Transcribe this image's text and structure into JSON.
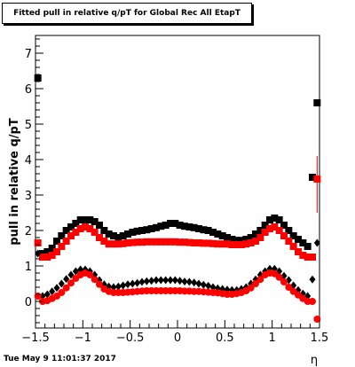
{
  "title": "Fitted pull in relative q/pT for Global Rec All EtapT",
  "timestamp": "Tue May  9 11:01:37 2017",
  "chart_data": {
    "type": "scatter",
    "xlabel": "η",
    "ylabel": "pull in relative q/pT",
    "xlim": [
      -1.5,
      1.5
    ],
    "ylim": [
      -0.75,
      7.5
    ],
    "x_ticks": [
      "−1.5",
      "−1",
      "−0.5",
      "0",
      "0.5",
      "1",
      "1.5"
    ],
    "y_ticks": [
      "0",
      "1",
      "2",
      "3",
      "4",
      "5",
      "6",
      "7"
    ],
    "grid": false,
    "series": [
      {
        "name": "",
        "marker": "square",
        "color": "#000000",
        "x": [
          -1.475,
          -1.425,
          -1.375,
          -1.325,
          -1.275,
          -1.225,
          -1.175,
          -1.125,
          -1.075,
          -1.025,
          -0.975,
          -0.925,
          -0.875,
          -0.825,
          -0.775,
          -0.725,
          -0.675,
          -0.625,
          -0.575,
          -0.525,
          -0.475,
          -0.425,
          -0.375,
          -0.325,
          -0.275,
          -0.225,
          -0.175,
          -0.125,
          -0.075,
          -0.025,
          0.025,
          0.075,
          0.125,
          0.175,
          0.225,
          0.275,
          0.325,
          0.375,
          0.425,
          0.475,
          0.525,
          0.575,
          0.625,
          0.675,
          0.725,
          0.775,
          0.825,
          0.875,
          0.925,
          0.975,
          1.025,
          1.075,
          1.125,
          1.175,
          1.225,
          1.275,
          1.325,
          1.375,
          1.425,
          1.475
        ],
        "y": [
          6.3,
          1.35,
          1.4,
          1.5,
          1.7,
          1.85,
          2.0,
          2.1,
          2.2,
          2.3,
          2.3,
          2.3,
          2.25,
          2.15,
          2.0,
          1.9,
          1.85,
          1.8,
          1.85,
          1.9,
          1.95,
          1.98,
          2.0,
          2.02,
          2.05,
          2.08,
          2.12,
          2.15,
          2.2,
          2.2,
          2.15,
          2.12,
          2.1,
          2.08,
          2.05,
          2.02,
          2.0,
          1.95,
          1.9,
          1.85,
          1.8,
          1.75,
          1.72,
          1.72,
          1.75,
          1.8,
          1.9,
          2.0,
          2.15,
          2.3,
          2.35,
          2.3,
          2.15,
          2.0,
          1.85,
          1.75,
          1.65,
          1.55,
          3.5,
          5.6
        ]
      },
      {
        "name": "",
        "marker": "square",
        "color": "#ff0000",
        "x": [
          -1.475,
          -1.425,
          -1.375,
          -1.325,
          -1.275,
          -1.225,
          -1.175,
          -1.125,
          -1.075,
          -1.025,
          -0.975,
          -0.925,
          -0.875,
          -0.825,
          -0.775,
          -0.725,
          -0.675,
          -0.625,
          -0.575,
          -0.525,
          -0.475,
          -0.425,
          -0.375,
          -0.325,
          -0.275,
          -0.225,
          -0.175,
          -0.125,
          -0.075,
          -0.025,
          0.025,
          0.075,
          0.125,
          0.175,
          0.225,
          0.275,
          0.325,
          0.375,
          0.425,
          0.475,
          0.525,
          0.575,
          0.625,
          0.675,
          0.725,
          0.775,
          0.825,
          0.875,
          0.925,
          0.975,
          1.025,
          1.075,
          1.125,
          1.175,
          1.225,
          1.275,
          1.325,
          1.375,
          1.425,
          1.475
        ],
        "y": [
          1.65,
          1.25,
          1.25,
          1.3,
          1.4,
          1.55,
          1.7,
          1.85,
          1.95,
          2.05,
          2.1,
          2.05,
          1.95,
          1.8,
          1.7,
          1.62,
          1.62,
          1.62,
          1.63,
          1.65,
          1.66,
          1.67,
          1.67,
          1.68,
          1.68,
          1.68,
          1.68,
          1.68,
          1.68,
          1.68,
          1.67,
          1.67,
          1.66,
          1.65,
          1.65,
          1.64,
          1.64,
          1.63,
          1.62,
          1.62,
          1.62,
          1.6,
          1.6,
          1.6,
          1.62,
          1.65,
          1.7,
          1.8,
          1.95,
          2.05,
          2.1,
          2.0,
          1.85,
          1.7,
          1.55,
          1.4,
          1.3,
          1.25,
          1.25,
          3.45
        ]
      },
      {
        "name": "",
        "marker": "diamond",
        "color": "#000000",
        "x": [
          -1.475,
          -1.425,
          -1.375,
          -1.325,
          -1.275,
          -1.225,
          -1.175,
          -1.125,
          -1.075,
          -1.025,
          -0.975,
          -0.925,
          -0.875,
          -0.825,
          -0.775,
          -0.725,
          -0.675,
          -0.625,
          -0.575,
          -0.525,
          -0.475,
          -0.425,
          -0.375,
          -0.325,
          -0.275,
          -0.225,
          -0.175,
          -0.125,
          -0.075,
          -0.025,
          0.025,
          0.075,
          0.125,
          0.175,
          0.225,
          0.275,
          0.325,
          0.375,
          0.425,
          0.475,
          0.525,
          0.575,
          0.625,
          0.675,
          0.725,
          0.775,
          0.825,
          0.875,
          0.925,
          0.975,
          1.025,
          1.075,
          1.125,
          1.175,
          1.225,
          1.275,
          1.325,
          1.375,
          1.425,
          1.475
        ],
        "y": [
          1.35,
          0.15,
          0.2,
          0.28,
          0.38,
          0.5,
          0.63,
          0.75,
          0.85,
          0.9,
          0.9,
          0.85,
          0.75,
          0.6,
          0.48,
          0.42,
          0.4,
          0.42,
          0.45,
          0.48,
          0.5,
          0.52,
          0.55,
          0.57,
          0.58,
          0.6,
          0.6,
          0.6,
          0.6,
          0.6,
          0.58,
          0.56,
          0.55,
          0.53,
          0.5,
          0.47,
          0.44,
          0.4,
          0.37,
          0.35,
          0.33,
          0.32,
          0.32,
          0.35,
          0.4,
          0.5,
          0.62,
          0.75,
          0.85,
          0.92,
          0.92,
          0.85,
          0.72,
          0.6,
          0.45,
          0.32,
          0.22,
          0.15,
          0.62,
          1.65
        ]
      },
      {
        "name": "",
        "marker": "circle",
        "color": "#ff0000",
        "x": [
          -1.475,
          -1.425,
          -1.375,
          -1.325,
          -1.275,
          -1.225,
          -1.175,
          -1.125,
          -1.075,
          -1.025,
          -0.975,
          -0.925,
          -0.875,
          -0.825,
          -0.775,
          -0.725,
          -0.675,
          -0.625,
          -0.575,
          -0.525,
          -0.475,
          -0.425,
          -0.375,
          -0.325,
          -0.275,
          -0.225,
          -0.175,
          -0.125,
          -0.075,
          -0.025,
          0.025,
          0.075,
          0.125,
          0.175,
          0.225,
          0.275,
          0.325,
          0.375,
          0.425,
          0.475,
          0.525,
          0.575,
          0.625,
          0.675,
          0.725,
          0.775,
          0.825,
          0.875,
          0.925,
          0.975,
          1.025,
          1.075,
          1.125,
          1.175,
          1.225,
          1.275,
          1.325,
          1.375,
          1.425,
          1.475
        ],
        "y": [
          0.15,
          0.0,
          0.02,
          0.08,
          0.15,
          0.25,
          0.38,
          0.52,
          0.65,
          0.75,
          0.8,
          0.75,
          0.62,
          0.48,
          0.35,
          0.28,
          0.25,
          0.25,
          0.25,
          0.26,
          0.27,
          0.28,
          0.29,
          0.3,
          0.3,
          0.3,
          0.3,
          0.3,
          0.3,
          0.3,
          0.3,
          0.29,
          0.29,
          0.28,
          0.28,
          0.27,
          0.26,
          0.25,
          0.24,
          0.22,
          0.2,
          0.2,
          0.22,
          0.25,
          0.3,
          0.38,
          0.5,
          0.62,
          0.75,
          0.8,
          0.78,
          0.68,
          0.55,
          0.4,
          0.28,
          0.18,
          0.08,
          0.0,
          0.0,
          -0.5
        ]
      }
    ],
    "error_bars": [
      {
        "series": 1,
        "x": 1.475,
        "low": 2.5,
        "high": 4.1
      }
    ]
  }
}
